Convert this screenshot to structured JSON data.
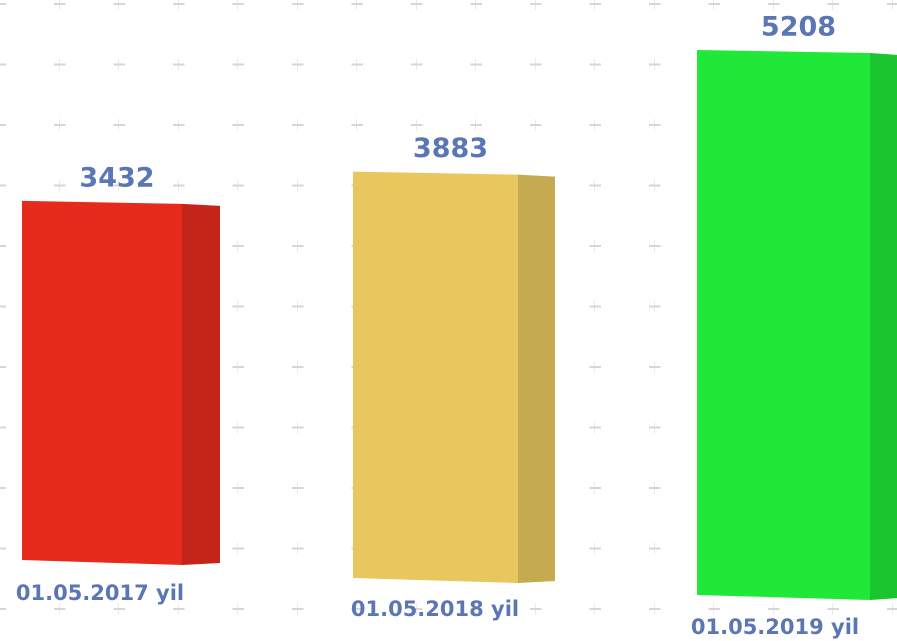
{
  "chart_data": {
    "type": "bar3d",
    "categories": [
      "01.05.2017 yil",
      "01.05.2018 yil",
      "01.05.2019 yil"
    ],
    "values": [
      3432,
      3883,
      5208
    ],
    "colors": [
      "#e62b1c",
      "#e8c85e",
      "#20e838"
    ]
  }
}
